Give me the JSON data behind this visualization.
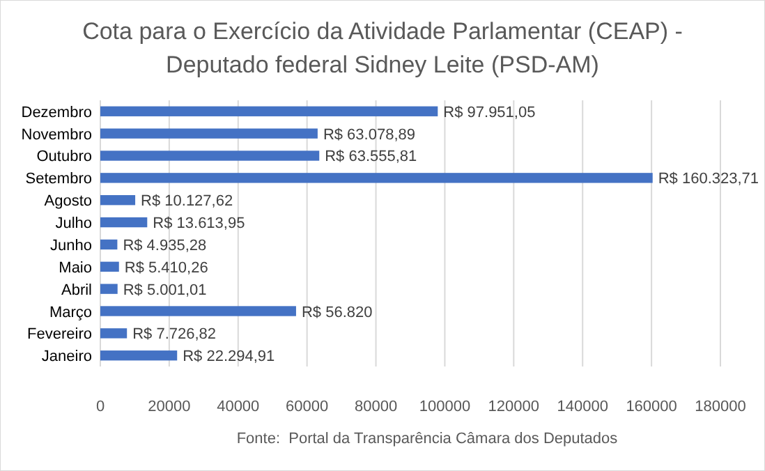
{
  "chart_data": {
    "type": "bar",
    "orientation": "horizontal",
    "title": "Cota para o Exercício da Atividade Parlamentar (CEAP) - Deputado federal Sidney Leite (PSD-AM)",
    "categories": [
      "Dezembro",
      "Novembro",
      "Outubro",
      "Setembro",
      "Agosto",
      "Julho",
      "Junho",
      "Maio",
      "Abril",
      "Março",
      "Fevereiro",
      "Janeiro"
    ],
    "values": [
      97951.05,
      63078.89,
      63555.81,
      160323.71,
      10127.62,
      13613.95,
      4935.28,
      5410.26,
      5001.01,
      56820,
      7726.82,
      22294.91
    ],
    "value_labels": [
      "R$ 97.951,05",
      "R$ 63.078,89",
      "R$ 63.555,81",
      "R$ 160.323,71",
      "R$ 10.127,62",
      "R$ 13.613,95",
      "R$ 4.935,28",
      "R$ 5.410,26",
      "R$ 5.001,01",
      "R$ 56.820",
      "R$ 7.726,82",
      "R$ 22.294,91"
    ],
    "color": "#4472c4",
    "xlim": [
      0,
      180000
    ],
    "xticks": [
      0,
      20000,
      40000,
      60000,
      80000,
      100000,
      120000,
      140000,
      160000,
      180000
    ],
    "grid": "x",
    "annotations": [
      "Fonte:  Portal da Transparência Câmara dos Deputados"
    ]
  }
}
